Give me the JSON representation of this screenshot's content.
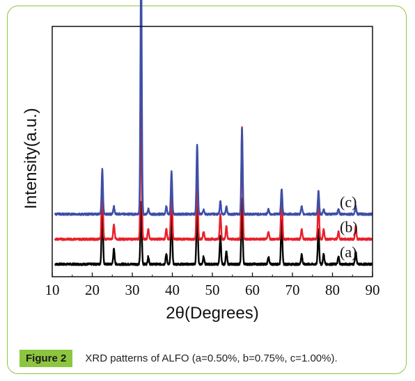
{
  "figure": {
    "label": "Figure 2",
    "caption": "XRD patterns of ALFO (a=0.50%, b=0.75%, c=1.00%)."
  },
  "colors": {
    "frame": "#8cc63f",
    "label_bg": "#8cc63f"
  },
  "chart_data": {
    "type": "line",
    "xlabel": "2θ(Degrees)",
    "ylabel": "Intensity(a.u.)",
    "xlim": [
      10,
      90
    ],
    "x_ticks": [
      10,
      20,
      30,
      40,
      50,
      60,
      70,
      80,
      90
    ],
    "y_ticks_shown": false,
    "grid": false,
    "legend": "none (series labeled inline at right)",
    "series": [
      {
        "name": "(a)",
        "color": "#000000",
        "baseline": 0.05,
        "peaks": [
          [
            22.5,
            0.25
          ],
          [
            25.4,
            0.06
          ],
          [
            32.2,
            0.25
          ],
          [
            34.0,
            0.03
          ],
          [
            38.5,
            0.04
          ],
          [
            39.8,
            0.23
          ],
          [
            46.2,
            0.25
          ],
          [
            47.8,
            0.03
          ],
          [
            52.0,
            0.11
          ],
          [
            53.5,
            0.05
          ],
          [
            57.4,
            0.26
          ],
          [
            64.0,
            0.03
          ],
          [
            67.3,
            0.18
          ],
          [
            72.3,
            0.04
          ],
          [
            76.5,
            0.14
          ],
          [
            77.8,
            0.04
          ],
          [
            81.5,
            0.03
          ],
          [
            85.8,
            0.05
          ]
        ]
      },
      {
        "name": "(b)",
        "color": "#e8202a",
        "baseline": 0.15,
        "peaks": [
          [
            22.5,
            0.27
          ],
          [
            25.4,
            0.06
          ],
          [
            32.2,
            0.55
          ],
          [
            34.0,
            0.04
          ],
          [
            38.5,
            0.04
          ],
          [
            39.8,
            0.25
          ],
          [
            46.2,
            0.3
          ],
          [
            47.8,
            0.03
          ],
          [
            52.0,
            0.1
          ],
          [
            53.5,
            0.05
          ],
          [
            57.4,
            0.45
          ],
          [
            64.0,
            0.03
          ],
          [
            67.3,
            0.2
          ],
          [
            72.3,
            0.04
          ],
          [
            76.5,
            0.16
          ],
          [
            77.8,
            0.04
          ],
          [
            81.5,
            0.03
          ],
          [
            85.8,
            0.05
          ]
        ]
      },
      {
        "name": "(c)",
        "color": "#3c4fa8",
        "baseline": 0.25,
        "peaks": [
          [
            22.5,
            0.18
          ],
          [
            25.4,
            0.03
          ],
          [
            32.2,
            1.0
          ],
          [
            34.0,
            0.02
          ],
          [
            38.5,
            0.03
          ],
          [
            39.8,
            0.17
          ],
          [
            46.2,
            0.28
          ],
          [
            47.8,
            0.02
          ],
          [
            52.0,
            0.05
          ],
          [
            53.5,
            0.03
          ],
          [
            57.4,
            0.34
          ],
          [
            64.0,
            0.02
          ],
          [
            67.3,
            0.1
          ],
          [
            72.3,
            0.03
          ],
          [
            76.5,
            0.09
          ],
          [
            77.8,
            0.02
          ],
          [
            81.5,
            0.02
          ],
          [
            85.8,
            0.03
          ]
        ]
      }
    ]
  }
}
